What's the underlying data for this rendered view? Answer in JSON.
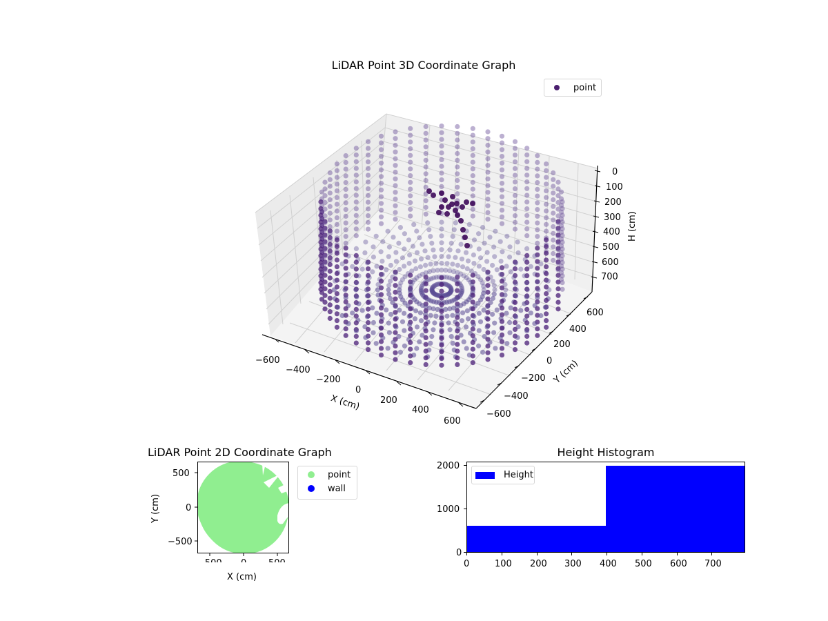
{
  "chart_data": [
    {
      "type": "scatter",
      "projection": "3d",
      "title": "LiDAR Point 3D Coordinate Graph",
      "xlabel": "X (cm)",
      "ylabel": "Y (cm)",
      "zlabel": "H (cm)",
      "x_ticks": [
        "−600",
        "−400",
        "−200",
        "0",
        "200",
        "400",
        "600"
      ],
      "y_ticks": [
        "−600",
        "−400",
        "−200",
        "0",
        "200",
        "400",
        "600"
      ],
      "z_ticks": [
        "0",
        "100",
        "200",
        "300",
        "400",
        "500",
        "600",
        "700"
      ],
      "xlim": [
        -650,
        650
      ],
      "ylim": [
        -650,
        650
      ],
      "zlim": [
        800,
        0
      ],
      "z_inverted": true,
      "legend": [
        {
          "label": "point",
          "color": "#4b1f6f"
        }
      ],
      "legend_position": "upper right",
      "description": "Cylindrical room scan: radial rays of points across floor plus vertical wall columns around ~650 cm radius, heights 0-800 cm; cluster of dark points near top-back",
      "grid": true
    },
    {
      "type": "scatter",
      "title": "LiDAR Point 2D Coordinate Graph",
      "xlabel": "X (cm)",
      "ylabel": "Y (cm)",
      "x_ticks": [
        "−500",
        "0",
        "500"
      ],
      "y_ticks": [
        "500",
        "0",
        "−500"
      ],
      "xlim": [
        -670,
        670
      ],
      "ylim": [
        -670,
        670
      ],
      "legend": [
        {
          "label": "point",
          "color": "#90ee90"
        },
        {
          "label": "wall",
          "color": "#0000ff"
        }
      ],
      "legend_position": "outside right",
      "description": "Filled disk of points radius ~650 cm with gaps on the right side"
    },
    {
      "type": "bar",
      "subtype": "histogram",
      "title": "Height Histogram",
      "bins": [
        [
          0,
          397
        ],
        [
          397,
          795
        ]
      ],
      "values": [
        570,
        1990
      ],
      "color": "#0000ff",
      "x_ticks": [
        "0",
        "100",
        "200",
        "300",
        "400",
        "500",
        "600",
        "700"
      ],
      "y_ticks": [
        "0",
        "1000",
        "2000"
      ],
      "xlim": [
        0,
        795
      ],
      "ylim": [
        0,
        2090
      ],
      "legend": [
        {
          "label": "Height",
          "color": "#0000ff"
        }
      ],
      "legend_position": "upper left"
    }
  ],
  "figure": {
    "plot3d": {
      "title": "LiDAR Point 3D Coordinate Graph",
      "legend_label": "point",
      "xlabel": "X (cm)",
      "ylabel": "Y (cm)",
      "zlabel": "H (cm)"
    },
    "plot2d": {
      "title": "LiDAR Point 2D Coordinate Graph",
      "xlabel": "X (cm)",
      "ylabel": "Y (cm)",
      "legend": [
        "point",
        "wall"
      ]
    },
    "hist": {
      "title": "Height Histogram",
      "legend_label": "Height"
    }
  }
}
